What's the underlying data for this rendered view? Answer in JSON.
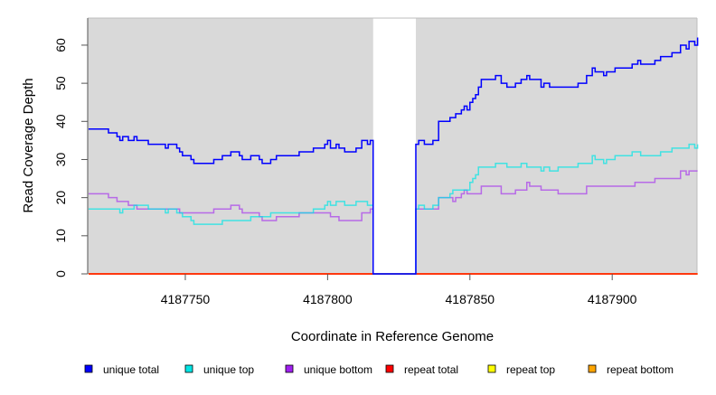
{
  "chart_data": {
    "type": "line",
    "step": true,
    "xlabel": "Coordinate in Reference Genome",
    "ylabel": "Read Coverage Depth",
    "xlim": [
      4187715.7,
      4187929.8
    ],
    "ylim": [
      0,
      67.1
    ],
    "xticks": [
      4187750,
      4187800,
      4187850,
      4187900
    ],
    "xtick_labels": [
      "4187750",
      "4187800",
      "4187850",
      "4187900"
    ],
    "yticks": [
      0,
      10,
      20,
      30,
      40,
      50,
      60
    ],
    "ytick_labels": [
      "0",
      "10",
      "20",
      "30",
      "40",
      "50",
      "60"
    ],
    "no_coverage_region": [
      4187816,
      4187831
    ],
    "background_color": "#d9d9d9",
    "legend_position": "bottom",
    "x_end": 4187930,
    "series": [
      {
        "name": "unique total",
        "color": "#0000ff",
        "opacity": 1,
        "points": [
          [
            4187716,
            38
          ],
          [
            4187723,
            37
          ],
          [
            4187726,
            36
          ],
          [
            4187727,
            35
          ],
          [
            4187728,
            36
          ],
          [
            4187730,
            35
          ],
          [
            4187732,
            36
          ],
          [
            4187733,
            35
          ],
          [
            4187737,
            34
          ],
          [
            4187743,
            33
          ],
          [
            4187744,
            34
          ],
          [
            4187747,
            33
          ],
          [
            4187748,
            32
          ],
          [
            4187749,
            31
          ],
          [
            4187752,
            30
          ],
          [
            4187753,
            29
          ],
          [
            4187760,
            30
          ],
          [
            4187763,
            31
          ],
          [
            4187766,
            32
          ],
          [
            4187769,
            31
          ],
          [
            4187770,
            30
          ],
          [
            4187773,
            31
          ],
          [
            4187776,
            30
          ],
          [
            4187777,
            29
          ],
          [
            4187780,
            30
          ],
          [
            4187782,
            31
          ],
          [
            4187790,
            32
          ],
          [
            4187795,
            33
          ],
          [
            4187799,
            34
          ],
          [
            4187800,
            35
          ],
          [
            4187801,
            33
          ],
          [
            4187803,
            34
          ],
          [
            4187804,
            33
          ],
          [
            4187806,
            32
          ],
          [
            4187810,
            33
          ],
          [
            4187812,
            35
          ],
          [
            4187814,
            34
          ],
          [
            4187815,
            35
          ],
          [
            4187816,
            0
          ],
          [
            4187831,
            34
          ],
          [
            4187832,
            35
          ],
          [
            4187834,
            34
          ],
          [
            4187837,
            35
          ],
          [
            4187839,
            40
          ],
          [
            4187843,
            41
          ],
          [
            4187845,
            42
          ],
          [
            4187847,
            43
          ],
          [
            4187848,
            44
          ],
          [
            4187849,
            43
          ],
          [
            4187850,
            45
          ],
          [
            4187851,
            46
          ],
          [
            4187852,
            47
          ],
          [
            4187853,
            49
          ],
          [
            4187854,
            51
          ],
          [
            4187859,
            52
          ],
          [
            4187861,
            50
          ],
          [
            4187863,
            49
          ],
          [
            4187866,
            50
          ],
          [
            4187868,
            51
          ],
          [
            4187870,
            52
          ],
          [
            4187871,
            51
          ],
          [
            4187875,
            49
          ],
          [
            4187876,
            50
          ],
          [
            4187878,
            49
          ],
          [
            4187888,
            50
          ],
          [
            4187891,
            52
          ],
          [
            4187893,
            54
          ],
          [
            4187894,
            53
          ],
          [
            4187897,
            52
          ],
          [
            4187898,
            53
          ],
          [
            4187901,
            54
          ],
          [
            4187907,
            55
          ],
          [
            4187909,
            56
          ],
          [
            4187910,
            55
          ],
          [
            4187915,
            56
          ],
          [
            4187917,
            57
          ],
          [
            4187921,
            58
          ],
          [
            4187924,
            60
          ],
          [
            4187926,
            59
          ],
          [
            4187927,
            61
          ],
          [
            4187929,
            60
          ],
          [
            4187930,
            62
          ]
        ]
      },
      {
        "name": "unique top",
        "color": "#00e5e5",
        "opacity": 0.7,
        "points": [
          [
            4187716,
            17
          ],
          [
            4187727,
            16
          ],
          [
            4187728,
            17
          ],
          [
            4187732,
            18
          ],
          [
            4187737,
            17
          ],
          [
            4187743,
            16
          ],
          [
            4187744,
            17
          ],
          [
            4187747,
            16
          ],
          [
            4187749,
            15
          ],
          [
            4187752,
            14
          ],
          [
            4187753,
            13
          ],
          [
            4187763,
            14
          ],
          [
            4187773,
            15
          ],
          [
            4187780,
            16
          ],
          [
            4187795,
            17
          ],
          [
            4187799,
            18
          ],
          [
            4187800,
            19
          ],
          [
            4187801,
            18
          ],
          [
            4187803,
            19
          ],
          [
            4187806,
            18
          ],
          [
            4187810,
            19
          ],
          [
            4187814,
            18
          ],
          [
            4187816,
            0
          ],
          [
            4187831,
            17
          ],
          [
            4187832,
            18
          ],
          [
            4187834,
            17
          ],
          [
            4187837,
            18
          ],
          [
            4187839,
            20
          ],
          [
            4187843,
            21
          ],
          [
            4187844,
            22
          ],
          [
            4187850,
            24
          ],
          [
            4187851,
            25
          ],
          [
            4187852,
            26
          ],
          [
            4187853,
            28
          ],
          [
            4187859,
            29
          ],
          [
            4187863,
            28
          ],
          [
            4187868,
            29
          ],
          [
            4187870,
            28
          ],
          [
            4187875,
            27
          ],
          [
            4187876,
            28
          ],
          [
            4187878,
            27
          ],
          [
            4187881,
            28
          ],
          [
            4187888,
            29
          ],
          [
            4187893,
            31
          ],
          [
            4187894,
            30
          ],
          [
            4187897,
            29
          ],
          [
            4187898,
            30
          ],
          [
            4187901,
            31
          ],
          [
            4187907,
            32
          ],
          [
            4187910,
            31
          ],
          [
            4187917,
            32
          ],
          [
            4187921,
            33
          ],
          [
            4187927,
            34
          ],
          [
            4187929,
            33
          ],
          [
            4187930,
            34
          ]
        ]
      },
      {
        "name": "unique bottom",
        "color": "#a020f0",
        "opacity": 0.6,
        "points": [
          [
            4187716,
            21
          ],
          [
            4187723,
            20
          ],
          [
            4187726,
            19
          ],
          [
            4187730,
            18
          ],
          [
            4187733,
            17
          ],
          [
            4187748,
            16
          ],
          [
            4187760,
            17
          ],
          [
            4187766,
            18
          ],
          [
            4187769,
            17
          ],
          [
            4187770,
            16
          ],
          [
            4187776,
            15
          ],
          [
            4187777,
            14
          ],
          [
            4187782,
            15
          ],
          [
            4187790,
            16
          ],
          [
            4187801,
            15
          ],
          [
            4187804,
            14
          ],
          [
            4187812,
            16
          ],
          [
            4187815,
            17
          ],
          [
            4187816,
            0
          ],
          [
            4187831,
            17
          ],
          [
            4187839,
            20
          ],
          [
            4187844,
            19
          ],
          [
            4187845,
            20
          ],
          [
            4187847,
            21
          ],
          [
            4187848,
            22
          ],
          [
            4187849,
            21
          ],
          [
            4187854,
            23
          ],
          [
            4187861,
            21
          ],
          [
            4187866,
            22
          ],
          [
            4187870,
            24
          ],
          [
            4187871,
            23
          ],
          [
            4187875,
            22
          ],
          [
            4187881,
            21
          ],
          [
            4187891,
            23
          ],
          [
            4187908,
            24
          ],
          [
            4187915,
            25
          ],
          [
            4187924,
            27
          ],
          [
            4187926,
            26
          ],
          [
            4187927,
            27
          ]
        ]
      },
      {
        "name": "repeat total",
        "color": "#ff0000",
        "opacity": 1,
        "points": [
          [
            4187716,
            0
          ]
        ]
      },
      {
        "name": "repeat top",
        "color": "#ffff00",
        "opacity": 1,
        "points": [
          [
            4187716,
            0
          ]
        ]
      },
      {
        "name": "repeat bottom",
        "color": "#ffa500",
        "opacity": 1,
        "points": [
          [
            4187716,
            0
          ]
        ]
      }
    ]
  }
}
